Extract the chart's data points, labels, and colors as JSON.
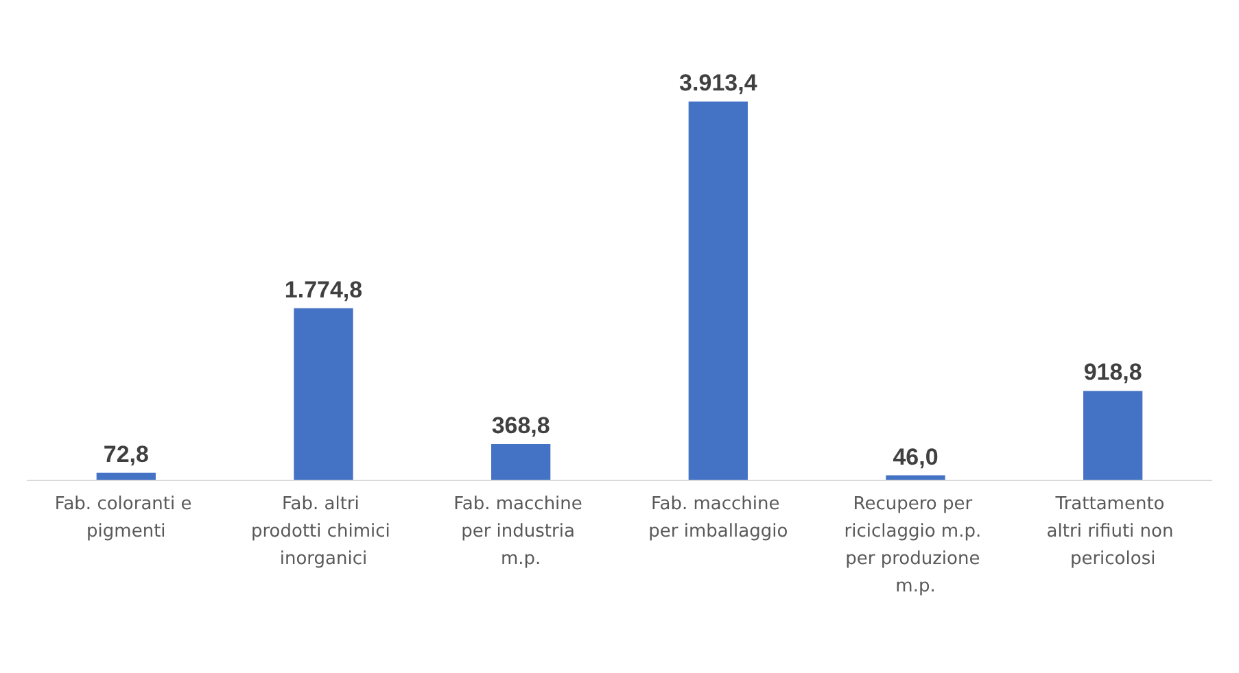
{
  "chart_data": {
    "type": "bar",
    "categories": [
      "Fab. coloranti e pigmenti",
      "Fab. altri prodotti chimici inorganici",
      "Fab. macchine per industria m.p.",
      "Fab. macchine per imballaggio",
      "Recupero per riciclaggio m.p. per produzione m.p.",
      "Trattamento altri rifiuti non pericolosi"
    ],
    "values": [
      72.8,
      1774.8,
      368.8,
      3913.4,
      46.0,
      918.8
    ],
    "value_labels": [
      "72,8",
      "1.774,8",
      "368,8",
      "3.913,4",
      "46,0",
      "918,8"
    ],
    "color": "#4472c4"
  }
}
